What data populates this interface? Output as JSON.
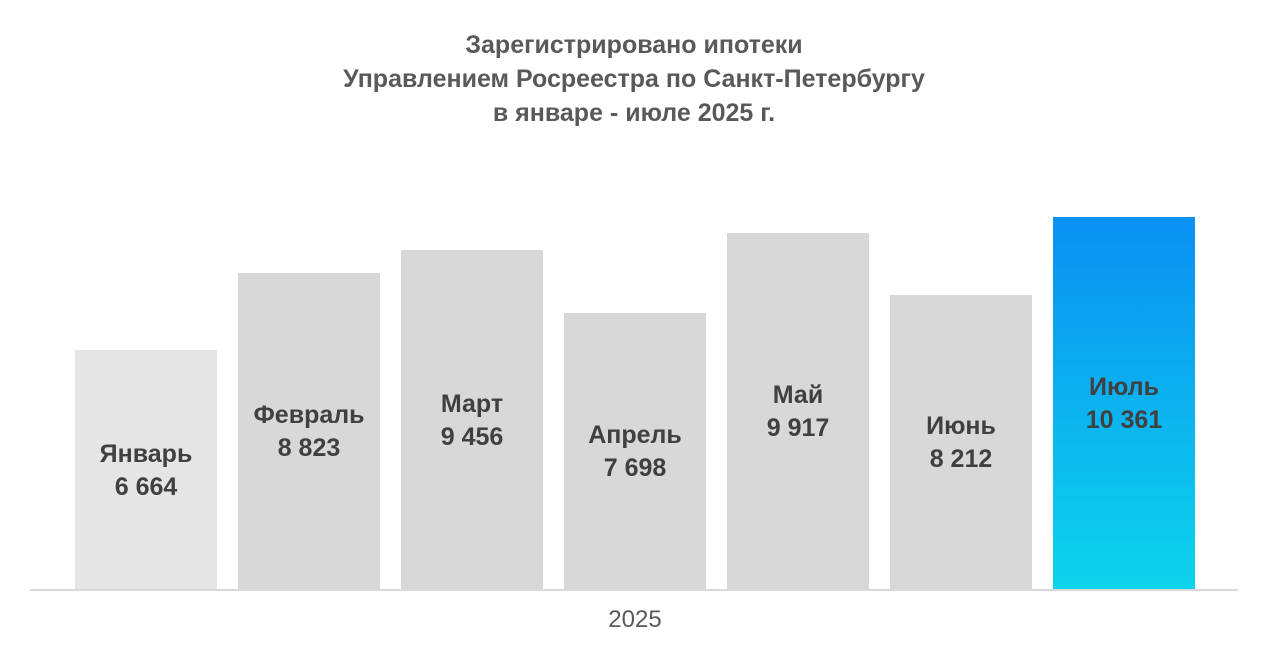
{
  "title": {
    "line1": "Зарегистрировано ипотеки",
    "line2": "Управлением Росреестра по Санкт-Петербургу",
    "line3": "в январе - июле 2025 г."
  },
  "chart_data": {
    "type": "bar",
    "title": "Зарегистрировано ипотеки Управлением Росреестра по Санкт-Петербургу в январе - июле 2025 г.",
    "categories": [
      "Январь",
      "Февраль",
      "Март",
      "Апрель",
      "Май",
      "Июнь",
      "Июль"
    ],
    "values": [
      6664,
      8823,
      9456,
      7698,
      9917,
      8212,
      10361
    ],
    "value_labels": [
      "6 664",
      "8 823",
      "9 456",
      "7 698",
      "9 917",
      "8 212",
      "10 361"
    ],
    "highlighted_index": 6,
    "xlabel": "2025",
    "ylabel": "",
    "ylim": [
      0,
      10361
    ],
    "grid": false,
    "legend": false,
    "colors": {
      "bar_first": "#e5e5e5",
      "bar_default": "#d8d8d8",
      "bar_highlight_gradient_top": "#0a90f2",
      "bar_highlight_gradient_bottom": "#0dd4ec",
      "label_text": "#404040",
      "title_text": "#595959",
      "axis_line": "#d9d9d9",
      "axis_label_text": "#595959"
    }
  }
}
